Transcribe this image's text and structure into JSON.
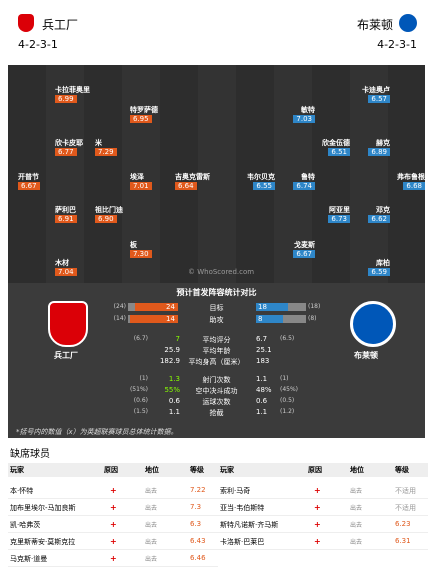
{
  "header": {
    "home": {
      "name": "兵工厂",
      "formation": "4-2-3-1"
    },
    "away": {
      "name": "布莱顿",
      "formation": "4-2-3-1"
    }
  },
  "pitch": {
    "watermark": "© WhoScored.com",
    "home": [
      {
        "name": "卡拉菲奥里",
        "rating": "6.99"
      },
      {
        "name": "特罗萨德",
        "rating": "6.95"
      },
      {
        "name": "欣卡皮耶",
        "rating": "6.77"
      },
      {
        "name": "米",
        "rating": "7.29"
      },
      {
        "name": "开普节",
        "rating": "6.67"
      },
      {
        "name": "埃泽",
        "rating": "7.01"
      },
      {
        "name": "吉奥克雷斯",
        "rating": "6.64"
      },
      {
        "name": "萨利巴",
        "rating": "6.91"
      },
      {
        "name": "祖比门迪",
        "rating": "6.90"
      },
      {
        "name": "板",
        "rating": "7.30"
      },
      {
        "name": "木材",
        "rating": "7.04"
      }
    ],
    "away": [
      {
        "name": "卡迪奥卢",
        "rating": "6.57"
      },
      {
        "name": "敏特",
        "rating": "7.03"
      },
      {
        "name": "欣金伍德",
        "rating": "6.51"
      },
      {
        "name": "赫克",
        "rating": "6.89"
      },
      {
        "name": "韦尔贝克",
        "rating": "6.55"
      },
      {
        "name": "鲁特",
        "rating": "6.74"
      },
      {
        "name": "弗布鲁根",
        "rating": "6.68"
      },
      {
        "name": "阿亚里",
        "rating": "6.73"
      },
      {
        "name": "邓克",
        "rating": "6.62"
      },
      {
        "name": "戈麦斯",
        "rating": "6.67"
      },
      {
        "name": "库柏",
        "rating": "6.59"
      }
    ]
  },
  "stats": {
    "title": "预计首发阵容统计对比",
    "home_name": "兵工厂",
    "away_name": "布莱顿",
    "bars": [
      {
        "label": "目标",
        "home": 24,
        "home_league": "(24)",
        "away": 18,
        "away_league": "(18)"
      },
      {
        "label": "助攻",
        "home": 14,
        "home_league": "(14)",
        "away": 8,
        "away_league": "(8)"
      }
    ],
    "rows": [
      {
        "label": "平均评分",
        "home": "7",
        "home_league": "(6.7)",
        "away": "6.7",
        "away_league": "(6.5)"
      },
      {
        "label": "平均年龄",
        "home": "25.9",
        "home_league": "",
        "away": "25.1",
        "away_league": ""
      },
      {
        "label": "平均身高（厘米）",
        "home": "182.9",
        "home_league": "",
        "away": "183",
        "away_league": ""
      },
      {
        "label": "射门次数",
        "home": "1.3",
        "home_league": "(1)",
        "away": "1.1",
        "away_league": "(1)"
      },
      {
        "label": "空中决斗成功",
        "home": "55%",
        "home_league": "(51%)",
        "away": "48%",
        "away_league": "(45%)"
      },
      {
        "label": "运球次数",
        "home": "0.6",
        "home_league": "(0.6)",
        "away": "0.6",
        "away_league": "(0.5)"
      },
      {
        "label": "抢截",
        "home": "1.1",
        "home_league": "(1.5)",
        "away": "1.1",
        "away_league": "(1.2)"
      }
    ],
    "note": "*括号内的数值（x）为英超联赛球员总体统计数据。"
  },
  "missing": {
    "title": "缺席球员",
    "headers": [
      "玩家",
      "原因",
      "地位",
      "等级"
    ],
    "home": [
      [
        "本·怀特",
        "出去",
        "7.22"
      ],
      [
        "加布里埃尔-马加良斯",
        "出去",
        "7.3"
      ],
      [
        "凯·哈弗茨",
        "出去",
        "6.3"
      ],
      [
        "克里斯蒂安·莫斯克拉",
        "出去",
        "6.43"
      ],
      [
        "马克斯·道曼",
        "出去",
        "6.46"
      ]
    ],
    "away": [
      [
        "索利·马奇",
        "出去",
        "不适用"
      ],
      [
        "亚当·韦伯斯特",
        "出去",
        "不适用"
      ],
      [
        "斯特凡诺斯·齐马斯",
        "出去",
        "6.23"
      ],
      [
        "卡洛斯·巴莱巴",
        "出去",
        "6.31"
      ]
    ]
  }
}
